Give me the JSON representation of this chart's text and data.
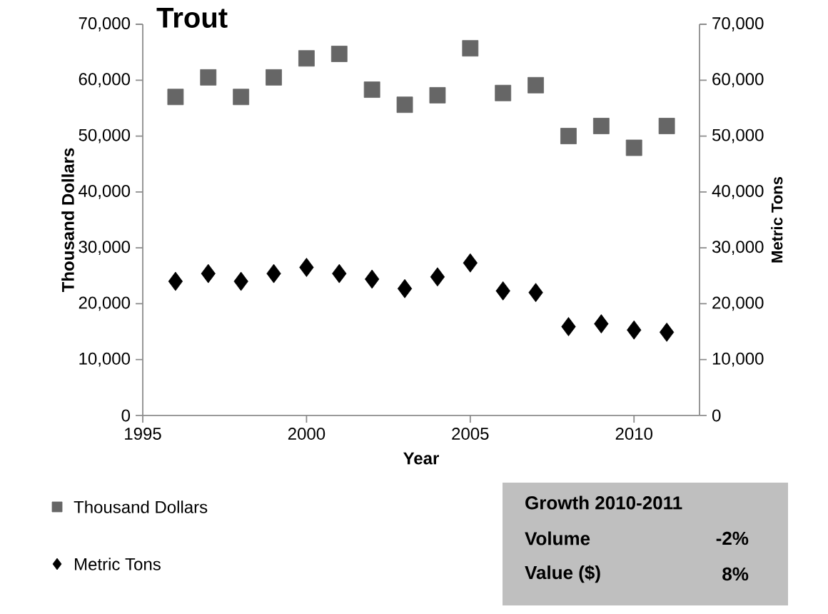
{
  "chart_data": {
    "type": "scatter",
    "title": "Trout",
    "xlabel": "Year",
    "ylabel": "Thousand Dollars",
    "y2label": "Metric Tons",
    "x": [
      1996,
      1997,
      1998,
      1999,
      2000,
      2001,
      2002,
      2003,
      2004,
      2005,
      2006,
      2007,
      2008,
      2009,
      2010,
      2011
    ],
    "series": [
      {
        "name": "Thousand Dollars",
        "color": "#666666",
        "marker": "square",
        "values": [
          57000,
          60500,
          57000,
          60500,
          63900,
          64700,
          58300,
          55600,
          57300,
          65700,
          57700,
          59100,
          50000,
          51800,
          47900,
          51800
        ]
      },
      {
        "name": "Metric Tons",
        "color": "#000000",
        "marker": "diamond",
        "axis": "y2",
        "values": [
          24000,
          25400,
          24000,
          25400,
          26500,
          25400,
          24400,
          22700,
          24800,
          27300,
          22300,
          22000,
          15900,
          16400,
          15300,
          14900
        ]
      }
    ],
    "xlim": [
      1995,
      2012
    ],
    "xticks": [
      1995,
      2000,
      2005,
      2010
    ],
    "ylim": [
      0,
      70000
    ],
    "yticks": [
      0,
      {
        "value": 10000,
        "label": "10,000"
      },
      {
        "value": 20000,
        "label": "20,000"
      },
      {
        "value": 30000,
        "label": "30,000"
      },
      {
        "value": 40000,
        "label": "40,000"
      },
      {
        "value": 50000,
        "label": "50,000"
      },
      {
        "value": 60000,
        "label": "60,000"
      },
      {
        "value": 70000,
        "label": "70,000"
      }
    ],
    "y2lim": [
      0,
      70000
    ],
    "y2ticks": [
      0,
      {
        "value": 10000,
        "label": "10,000"
      },
      {
        "value": 20000,
        "label": "20,000"
      },
      {
        "value": 30000,
        "label": "30,000"
      },
      {
        "value": 40000,
        "label": "40,000"
      },
      {
        "value": 50000,
        "label": "50,000"
      },
      {
        "value": 60000,
        "label": "60,000"
      },
      {
        "value": 70000,
        "label": "70,000"
      }
    ],
    "grid": false,
    "legend": "bottom left",
    "annotations": [
      "Growth 2010-2011",
      "Volume",
      "-2%",
      "Value ($)",
      "8%"
    ]
  }
}
